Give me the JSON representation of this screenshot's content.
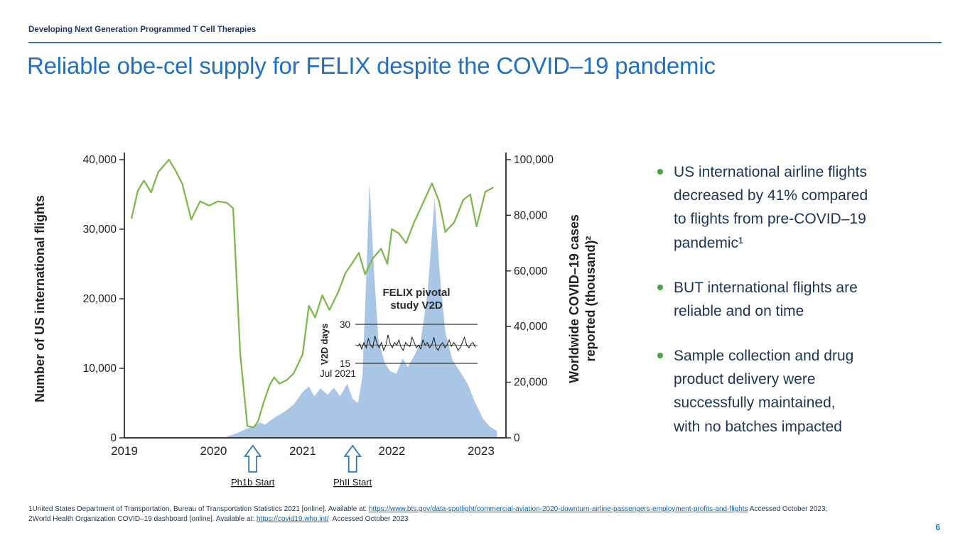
{
  "slide": {
    "header": "Developing Next Generation Programmed T Cell Therapies",
    "title": "Reliable obe-cel supply for FELIX despite the COVID–19 pandemic",
    "page_number": "6"
  },
  "bullets": [
    {
      "text": "US international airline flights\ndecreased by 41% compared\nto flights from pre-COVID–19\npandemic¹"
    },
    {
      "text": "BUT international flights are\nreliable and on time"
    },
    {
      "text": "Sample collection and drug\nproduct delivery were\nsuccessfully maintained,\nwith no batches impacted"
    }
  ],
  "footnotes": {
    "line1_prefix": "1United States Department of Transportation, Bureau of Transportation Statistics 2021 [online]. Available at: ",
    "line1_link": "https://www.bts.gov/data-spotlight/commercial-aviation-2020-downturn-airline-passengers-employment-profits-and-flights",
    "line1_suffix": " Accessed October 2023;",
    "line2_prefix": "2World Health Organization COVID–19 dashboard [online]. Available at: ",
    "line2_link": "https://covid19.who.int/",
    "line2_suffix": "  Accessed October 2023"
  },
  "colors": {
    "title_blue": "#1f6fc4",
    "header_navy": "#1f3864",
    "divider_blue": "#2e75b6",
    "bullet_green": "#44a344",
    "body_navy": "#1c3557",
    "link_blue": "#0563c1",
    "flights_line_green": "#7fb94d",
    "covid_area_blue": "#a9c6e6",
    "arrow_blue": "#2e75b6"
  },
  "chart_data": {
    "type": "line",
    "title": "",
    "x_axis": {
      "label": "",
      "tick_labels": [
        "2019",
        "2020",
        "2021",
        "2022",
        "2023"
      ],
      "tick_values": [
        2019,
        2020,
        2021,
        2022,
        2023
      ],
      "range": [
        2019,
        2023.28
      ]
    },
    "left_axis": {
      "label": "Number of US international flights",
      "tick_labels": [
        "0",
        "10,000",
        "20,000",
        "30,000",
        "40,000"
      ],
      "tick_values": [
        0,
        10000,
        20000,
        30000,
        40000
      ],
      "range": [
        0,
        40000
      ]
    },
    "right_axis": {
      "label": "Worldwide COVID–19 cases reported (thousand)²",
      "label_lines": [
        "Worldwide COVID–19 cases",
        "reported (thousand)²"
      ],
      "tick_labels": [
        "0",
        "20,000",
        "40,000",
        "60,000",
        "80,000",
        "100,000"
      ],
      "tick_values": [
        0,
        20000,
        40000,
        60000,
        80000,
        100000
      ],
      "range": [
        0,
        100000
      ]
    },
    "series": [
      {
        "name": "US international flights",
        "type": "line",
        "axis": "left",
        "color": "#7fb94d",
        "x": [
          2019.08,
          2019.15,
          2019.22,
          2019.3,
          2019.38,
          2019.5,
          2019.58,
          2019.65,
          2019.75,
          2019.85,
          2019.95,
          2020.05,
          2020.15,
          2020.22,
          2020.3,
          2020.38,
          2020.45,
          2020.5,
          2020.56,
          2020.63,
          2020.68,
          2020.74,
          2020.82,
          2020.9,
          2021.0,
          2021.07,
          2021.14,
          2021.22,
          2021.3,
          2021.4,
          2021.48,
          2021.56,
          2021.63,
          2021.7,
          2021.78,
          2021.88,
          2021.95,
          2022.0,
          2022.08,
          2022.16,
          2022.25,
          2022.33,
          2022.45,
          2022.53,
          2022.6,
          2022.7,
          2022.8,
          2022.88,
          2022.95,
          2023.05,
          2023.14
        ],
        "values": [
          31500,
          35500,
          37000,
          35300,
          38200,
          40000,
          38300,
          36500,
          31400,
          34000,
          33400,
          34000,
          33800,
          33000,
          12000,
          1700,
          1500,
          2400,
          5000,
          7600,
          8700,
          7800,
          8300,
          9300,
          12000,
          19000,
          17300,
          20500,
          18400,
          21000,
          23700,
          25200,
          26600,
          23500,
          25700,
          27200,
          25000,
          30000,
          29400,
          28000,
          31000,
          33200,
          36600,
          34000,
          29600,
          31000,
          34200,
          35000,
          30400,
          35400,
          36000
        ]
      },
      {
        "name": "Worldwide COVID–19 cases reported (thousand)",
        "type": "area",
        "axis": "right",
        "color": "#a9c6e6",
        "x": [
          2020.15,
          2020.25,
          2020.35,
          2020.45,
          2020.52,
          2020.58,
          2020.65,
          2020.72,
          2020.8,
          2020.9,
          2021.0,
          2021.07,
          2021.13,
          2021.2,
          2021.28,
          2021.35,
          2021.42,
          2021.5,
          2021.56,
          2021.62,
          2021.67,
          2021.71,
          2021.75,
          2021.8,
          2021.85,
          2021.92,
          2021.98,
          2022.05,
          2022.12,
          2022.18,
          2022.25,
          2022.32,
          2022.4,
          2022.48,
          2022.54,
          2022.6,
          2022.68,
          2022.76,
          2022.85,
          2022.93,
          2023.02,
          2023.1,
          2023.18
        ],
        "values": [
          500,
          1500,
          3000,
          4200,
          5500,
          4800,
          6500,
          8000,
          9500,
          12000,
          16500,
          18500,
          15000,
          17800,
          15500,
          18000,
          15000,
          19500,
          14000,
          12500,
          22000,
          55000,
          92000,
          60000,
          35000,
          27000,
          24000,
          23000,
          28500,
          25500,
          29500,
          34000,
          52000,
          86000,
          58000,
          38000,
          28000,
          24000,
          19500,
          13000,
          7000,
          4000,
          2500
        ]
      }
    ],
    "annotations": [
      {
        "label": "Ph1b Start",
        "x": 2020.44
      },
      {
        "label": "PhII Start",
        "x": 2021.56
      }
    ],
    "inset": {
      "title_lines": [
        "FELIX pivotal",
        "study V2D"
      ],
      "ylabel": "V2D days",
      "ytick_labels": [
        "30",
        "15"
      ],
      "ytick_values": [
        30,
        15
      ],
      "y_range": [
        15,
        30
      ],
      "xlabel": "Jul 2021",
      "mean_line": 22,
      "values": [
        21.5,
        22.5,
        20.5,
        23,
        21,
        24.5,
        22,
        21,
        25.5,
        22.5,
        21,
        23,
        20,
        22,
        26,
        22.5,
        21,
        23,
        22,
        24,
        21,
        20,
        23,
        22,
        21.5,
        25,
        23,
        21,
        22,
        20.5,
        24,
        22,
        23,
        21,
        22,
        25,
        21,
        20,
        22,
        23,
        21,
        22,
        24,
        21.5,
        23,
        22,
        20,
        21,
        23,
        25,
        22,
        21,
        22.5,
        23,
        21
      ]
    }
  }
}
